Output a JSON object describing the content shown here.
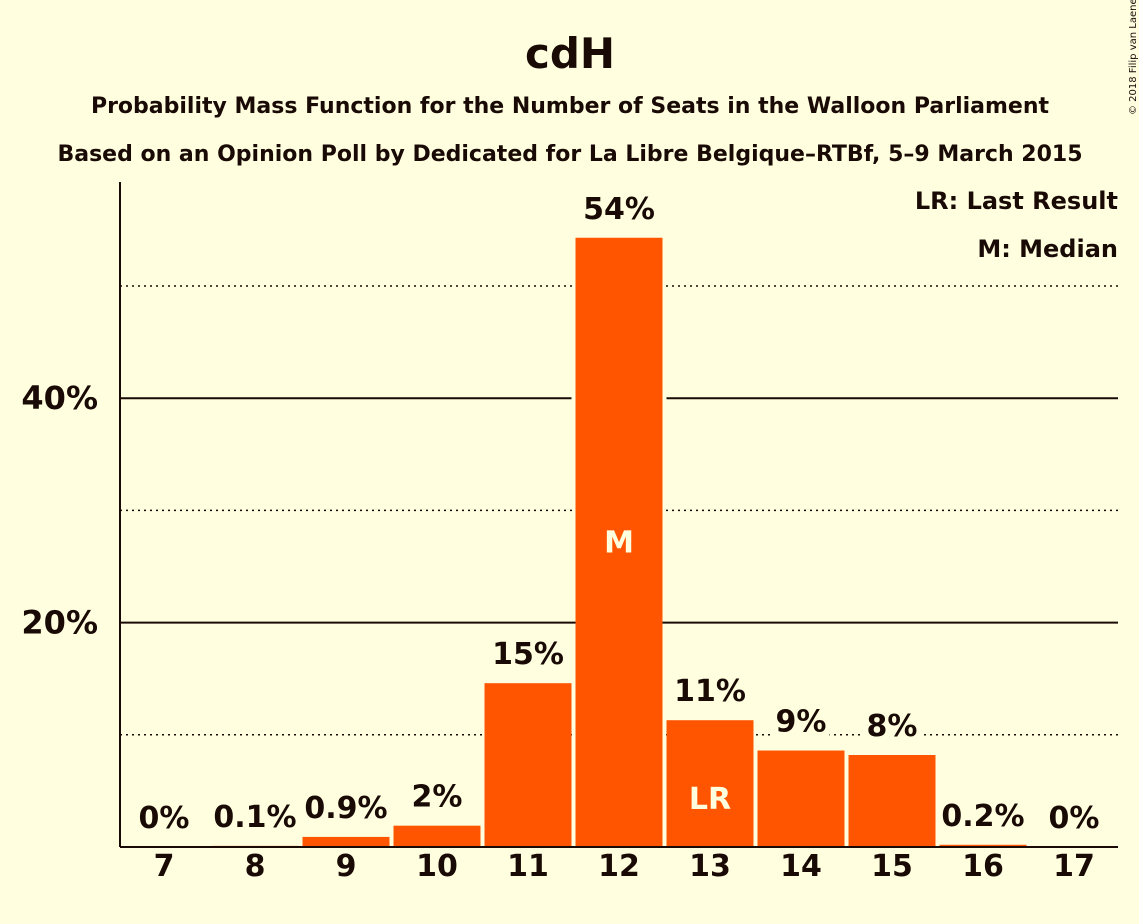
{
  "copyright": "© 2018 Filip van Laenen",
  "chart_data": {
    "type": "bar",
    "title": "cdH",
    "subtitle_1": "Probability Mass Function for the Number of Seats in the Walloon Parliament",
    "subtitle_2": "Based on an Opinion Poll by Dedicated for La Libre Belgique–RTBf, 5–9 March 2015",
    "categories": [
      "7",
      "8",
      "9",
      "10",
      "11",
      "12",
      "13",
      "14",
      "15",
      "16",
      "17"
    ],
    "values": [
      0,
      0.1,
      0.9,
      1.9,
      14.6,
      54.3,
      11.3,
      8.6,
      8.2,
      0.2,
      0
    ],
    "data_labels": [
      "0%",
      "0.1%",
      "0.9%",
      "2%",
      "15%",
      "54%",
      "11%",
      "9%",
      "8%",
      "0.2%",
      "0%"
    ],
    "ylim": [
      0,
      59
    ],
    "yticks": [
      {
        "value": 20,
        "label": "20%"
      },
      {
        "value": 40,
        "label": "40%"
      }
    ],
    "minor_gridlines": [
      10,
      30,
      50
    ],
    "median_index": 5,
    "median_marker": "M",
    "last_result_index": 6,
    "last_result_marker": "LR",
    "legend": [
      "LR: Last Result",
      "M: Median"
    ],
    "legend_position": "top-right",
    "bar_color": "#ff5500",
    "background_color": "#ffffe0",
    "text_color": "#1a0a05"
  }
}
